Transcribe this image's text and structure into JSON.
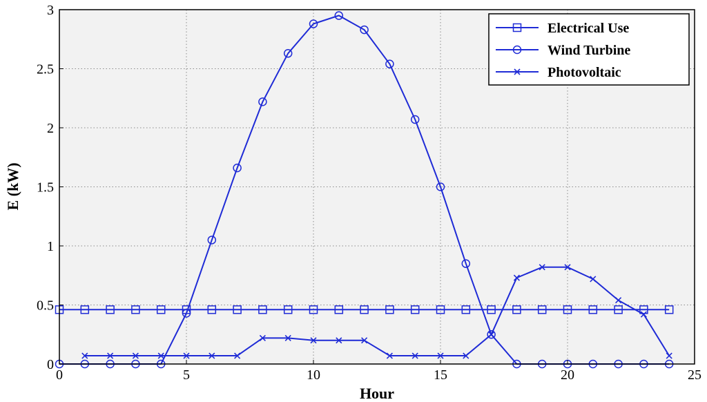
{
  "chart_data": {
    "type": "line",
    "xlabel": "Hour",
    "ylabel": "E (kW)",
    "xlim": [
      0,
      25
    ],
    "ylim": [
      0,
      3
    ],
    "xticks": [
      0,
      5,
      10,
      15,
      20,
      25
    ],
    "yticks": [
      0,
      0.5,
      1,
      1.5,
      2,
      2.5,
      3
    ],
    "ytick_labels": [
      "0",
      "0.5",
      "1",
      "1.5",
      "2",
      "2.5",
      "3"
    ],
    "grid": true,
    "legend_position": "top-right",
    "line_color": "#1f2bd6",
    "plot_background": "#f2f2f2",
    "series": [
      {
        "name": "Electrical Use",
        "marker": "square",
        "x": [
          0,
          1,
          2,
          3,
          4,
          5,
          6,
          7,
          8,
          9,
          10,
          11,
          12,
          13,
          14,
          15,
          16,
          17,
          18,
          19,
          20,
          21,
          22,
          23,
          24
        ],
        "values": [
          0.46,
          0.46,
          0.46,
          0.46,
          0.46,
          0.46,
          0.46,
          0.46,
          0.46,
          0.46,
          0.46,
          0.46,
          0.46,
          0.46,
          0.46,
          0.46,
          0.46,
          0.46,
          0.46,
          0.46,
          0.46,
          0.46,
          0.46,
          0.46,
          0.46
        ]
      },
      {
        "name": "Wind Turbine",
        "marker": "circle",
        "x": [
          0,
          1,
          2,
          3,
          4,
          5,
          6,
          7,
          8,
          9,
          10,
          11,
          12,
          13,
          14,
          15,
          16,
          17,
          18,
          19,
          20,
          21,
          22,
          23,
          24
        ],
        "values": [
          0,
          0,
          0,
          0,
          0,
          0.43,
          1.05,
          1.66,
          2.22,
          2.63,
          2.88,
          2.95,
          2.83,
          2.54,
          2.07,
          1.5,
          0.85,
          0.25,
          0,
          0,
          0,
          0,
          0,
          0,
          0
        ]
      },
      {
        "name": "Photovoltaic",
        "marker": "x",
        "x": [
          1,
          2,
          3,
          4,
          5,
          6,
          7,
          8,
          9,
          10,
          11,
          12,
          13,
          14,
          15,
          16,
          17,
          18,
          19,
          20,
          21,
          22,
          23,
          24
        ],
        "values": [
          0.07,
          0.07,
          0.07,
          0.07,
          0.07,
          0.07,
          0.07,
          0.22,
          0.22,
          0.2,
          0.2,
          0.2,
          0.07,
          0.07,
          0.07,
          0.07,
          0.25,
          0.73,
          0.82,
          0.82,
          0.72,
          0.54,
          0.42,
          0.07
        ]
      }
    ]
  }
}
